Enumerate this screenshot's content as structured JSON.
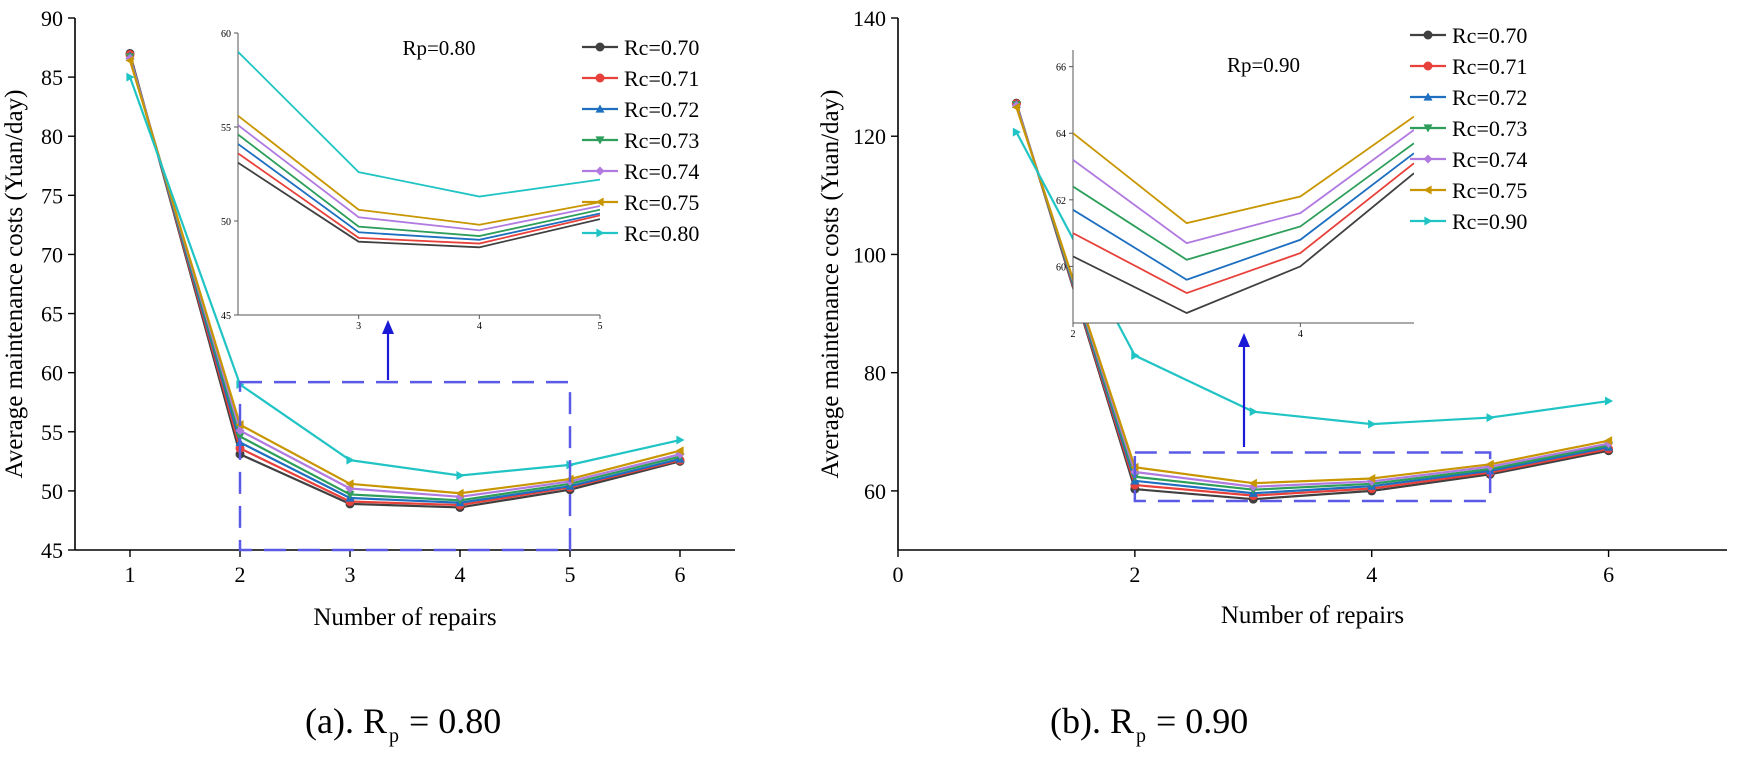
{
  "figure": {
    "panels": [
      {
        "prefix": "(a). R",
        "sub": "p",
        "suffix": "= 0.80"
      },
      {
        "prefix": "(b). R",
        "sub": "p",
        "suffix": "= 0.90"
      }
    ]
  },
  "chart_data": [
    {
      "type": "line",
      "panel_label": "(a). Rp = 0.80",
      "xlabel": "Number of repairs",
      "ylabel": "Average maintenance costs (Yuan/day)",
      "xlim": [
        0.5,
        6.5
      ],
      "ylim": [
        45,
        90
      ],
      "xticks": [
        1,
        2,
        3,
        4,
        5,
        6
      ],
      "yticks": [
        45,
        50,
        55,
        60,
        65,
        70,
        75,
        80,
        85,
        90
      ],
      "legend_position": "top-right",
      "x": [
        1,
        2,
        3,
        4,
        5,
        6
      ],
      "series": [
        {
          "name": "Rc=0.70",
          "color": "#404040",
          "marker": "circle",
          "values": [
            87.0,
            53.1,
            48.9,
            48.6,
            50.1,
            52.5
          ]
        },
        {
          "name": "Rc=0.71",
          "color": "#e8403a",
          "marker": "circle",
          "values": [
            86.9,
            53.6,
            49.1,
            48.8,
            50.3,
            52.6
          ]
        },
        {
          "name": "Rc=0.72",
          "color": "#1e6fc0",
          "marker": "triangle-up",
          "values": [
            86.8,
            54.1,
            49.4,
            49.0,
            50.4,
            52.7
          ]
        },
        {
          "name": "Rc=0.73",
          "color": "#2e9e5b",
          "marker": "triangle-down",
          "values": [
            86.7,
            54.6,
            49.7,
            49.2,
            50.6,
            52.9
          ]
        },
        {
          "name": "Rc=0.74",
          "color": "#b07ae0",
          "marker": "diamond",
          "values": [
            86.6,
            55.1,
            50.2,
            49.5,
            50.8,
            53.1
          ]
        },
        {
          "name": "Rc=0.75",
          "color": "#c89600",
          "marker": "triangle-left",
          "values": [
            86.4,
            55.6,
            50.6,
            49.8,
            51.0,
            53.4
          ]
        },
        {
          "name": "Rc=0.80",
          "color": "#21c4c4",
          "marker": "triangle-right",
          "values": [
            85.0,
            59.0,
            52.6,
            51.3,
            52.2,
            54.3
          ]
        }
      ],
      "highlight_box": {
        "x": [
          2,
          5
        ],
        "y": [
          45,
          59.2
        ]
      },
      "inset": {
        "title": "Rp=0.80",
        "xlim": [
          2,
          5
        ],
        "ylim": [
          45,
          60
        ],
        "xticks": [
          3,
          4,
          5
        ],
        "yticks": [
          45,
          50,
          55,
          60
        ]
      }
    },
    {
      "type": "line",
      "panel_label": "(b). Rp = 0.90",
      "xlabel": "Number of repairs",
      "ylabel": "Average maintenance costs (Yuan/day)",
      "xlim": [
        0,
        7
      ],
      "ylim": [
        50,
        140
      ],
      "xticks": [
        0,
        2,
        4,
        6
      ],
      "yticks": [
        60,
        80,
        100,
        120,
        140
      ],
      "legend_position": "top-right",
      "x": [
        1,
        2,
        3,
        4,
        5,
        6
      ],
      "series": [
        {
          "name": "Rc=0.70",
          "color": "#404040",
          "marker": "circle",
          "values": [
            125.6,
            60.3,
            58.6,
            60.0,
            62.8,
            66.8
          ]
        },
        {
          "name": "Rc=0.71",
          "color": "#e8403a",
          "marker": "circle",
          "values": [
            125.5,
            61.0,
            59.2,
            60.4,
            63.1,
            67.1
          ]
        },
        {
          "name": "Rc=0.72",
          "color": "#1e6fc0",
          "marker": "triangle-up",
          "values": [
            125.4,
            61.7,
            59.6,
            60.8,
            63.4,
            67.4
          ]
        },
        {
          "name": "Rc=0.73",
          "color": "#2e9e5b",
          "marker": "triangle-down",
          "values": [
            125.3,
            62.4,
            60.2,
            61.2,
            63.7,
            67.7
          ]
        },
        {
          "name": "Rc=0.74",
          "color": "#b07ae0",
          "marker": "diamond",
          "values": [
            125.2,
            63.2,
            60.7,
            61.6,
            64.1,
            68.0
          ]
        },
        {
          "name": "Rc=0.75",
          "color": "#c89600",
          "marker": "triangle-left",
          "values": [
            124.9,
            64.0,
            61.3,
            62.1,
            64.5,
            68.5
          ]
        },
        {
          "name": "Rc=0.90",
          "color": "#21c4c4",
          "marker": "triangle-right",
          "values": [
            120.7,
            82.9,
            73.4,
            71.3,
            72.4,
            75.2
          ]
        }
      ],
      "highlight_box": {
        "x": [
          2,
          5
        ],
        "y": [
          58.3,
          66.5
        ]
      },
      "inset": {
        "title": "Rp=0.90",
        "xlim": [
          2,
          5
        ],
        "ylim": [
          58.3,
          66.5
        ],
        "xticks": [
          2,
          4
        ],
        "yticks": [
          60,
          62,
          64,
          66
        ]
      }
    }
  ]
}
